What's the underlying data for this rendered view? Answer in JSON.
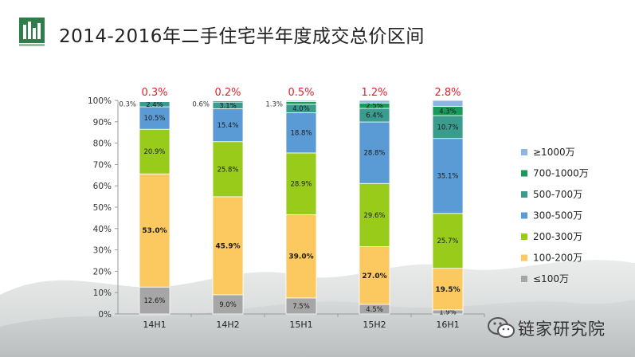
{
  "title": "2014-2016年二手住宅半年度成交总价区间",
  "watermark": "链家研究院",
  "colors": {
    "le100": "#a6a6a6",
    "100_200": "#fcc960",
    "200_300": "#99cc1a",
    "300_500": "#5b9bd5",
    "500_700": "#3a9b8f",
    "700_1000": "#179b5a",
    "ge1000": "#8eb4e3",
    "top_label": "#e0242a",
    "logo": "#2e7d4a"
  },
  "chart_data": {
    "type": "bar",
    "stacked": true,
    "categories": [
      "14H1",
      "14H2",
      "15H1",
      "15H2",
      "16H1"
    ],
    "ylim": [
      0,
      100
    ],
    "yticks": [
      "0%",
      "10%",
      "20%",
      "30%",
      "40%",
      "50%",
      "60%",
      "70%",
      "80%",
      "90%",
      "100%"
    ],
    "series": [
      {
        "name": "≤100万",
        "key": "le100",
        "values": [
          12.6,
          9.0,
          7.5,
          4.5,
          1.9
        ],
        "labels": [
          "12.6%",
          "9.0%",
          "7.5%",
          "4.5%",
          "1.9%"
        ]
      },
      {
        "name": "100-200万",
        "key": "100_200",
        "values": [
          53.0,
          45.9,
          39.0,
          27.0,
          19.5
        ],
        "labels": [
          "53.0%",
          "45.9%",
          "39.0%",
          "27.0%",
          "19.5%"
        ]
      },
      {
        "name": "200-300万",
        "key": "200_300",
        "values": [
          20.9,
          25.8,
          28.9,
          29.6,
          25.7
        ],
        "labels": [
          "20.9%",
          "25.8%",
          "28.9%",
          "29.6%",
          "25.7%"
        ]
      },
      {
        "name": "300-500万",
        "key": "300_500",
        "values": [
          10.5,
          15.4,
          18.8,
          28.8,
          35.1
        ],
        "labels": [
          "10.5%",
          "15.4%",
          "18.8%",
          "28.8%",
          "35.1%"
        ]
      },
      {
        "name": "500-700万",
        "key": "500_700",
        "values": [
          2.4,
          3.1,
          4.0,
          6.4,
          10.7
        ],
        "labels": [
          "2.4%",
          "3.1%",
          "4.0%",
          "6.4%",
          "10.7%"
        ]
      },
      {
        "name": "700-1000万",
        "key": "700_1000",
        "values": [
          0.3,
          0.6,
          1.3,
          2.5,
          4.3
        ],
        "labels": [
          "",
          "",
          "",
          "2.5%",
          "4.3%"
        ]
      },
      {
        "name": "≥1000万",
        "key": "ge1000",
        "values": [
          0.3,
          0.2,
          0.5,
          1.2,
          2.8
        ],
        "labels": [
          "",
          "",
          "",
          "",
          ""
        ]
      }
    ],
    "side_labels": [
      "0.3%",
      "0.6%",
      "1.3%",
      "",
      ""
    ],
    "top_labels": [
      "0.3%",
      "0.2%",
      "0.5%",
      "1.2%",
      "2.8%"
    ],
    "legend_order": [
      "ge1000",
      "700_1000",
      "500_700",
      "300_500",
      "200_300",
      "100_200",
      "le100"
    ],
    "legend_position": "right"
  }
}
